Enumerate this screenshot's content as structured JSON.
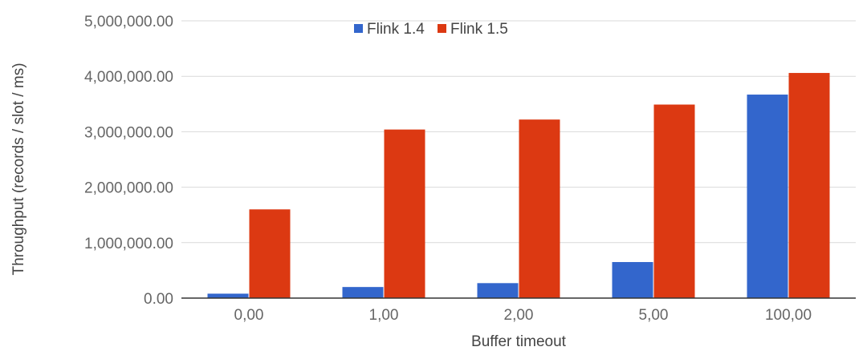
{
  "chart_data": {
    "type": "bar",
    "categories": [
      "0,00",
      "1,00",
      "2,00",
      "5,00",
      "100,00"
    ],
    "series": [
      {
        "name": "Flink 1.4",
        "color": "#3366cc",
        "values": [
          80000,
          200000,
          270000,
          650000,
          3670000
        ]
      },
      {
        "name": "Flink 1.5",
        "color": "#dc3912",
        "values": [
          1600000,
          3040000,
          3220000,
          3490000,
          4060000
        ]
      }
    ],
    "title": "",
    "xlabel": "Buffer timeout",
    "ylabel": "Throughput (records / slot / ms)",
    "ylim": [
      0,
      5000000
    ],
    "yticks": [
      0,
      1000000,
      2000000,
      3000000,
      4000000,
      5000000
    ],
    "ytick_labels": [
      "0.00",
      "1,000,000.00",
      "2,000,000.00",
      "3,000,000.00",
      "4,000,000.00",
      "5,000,000.00"
    ],
    "grid": true,
    "legend_position": "top-center"
  }
}
